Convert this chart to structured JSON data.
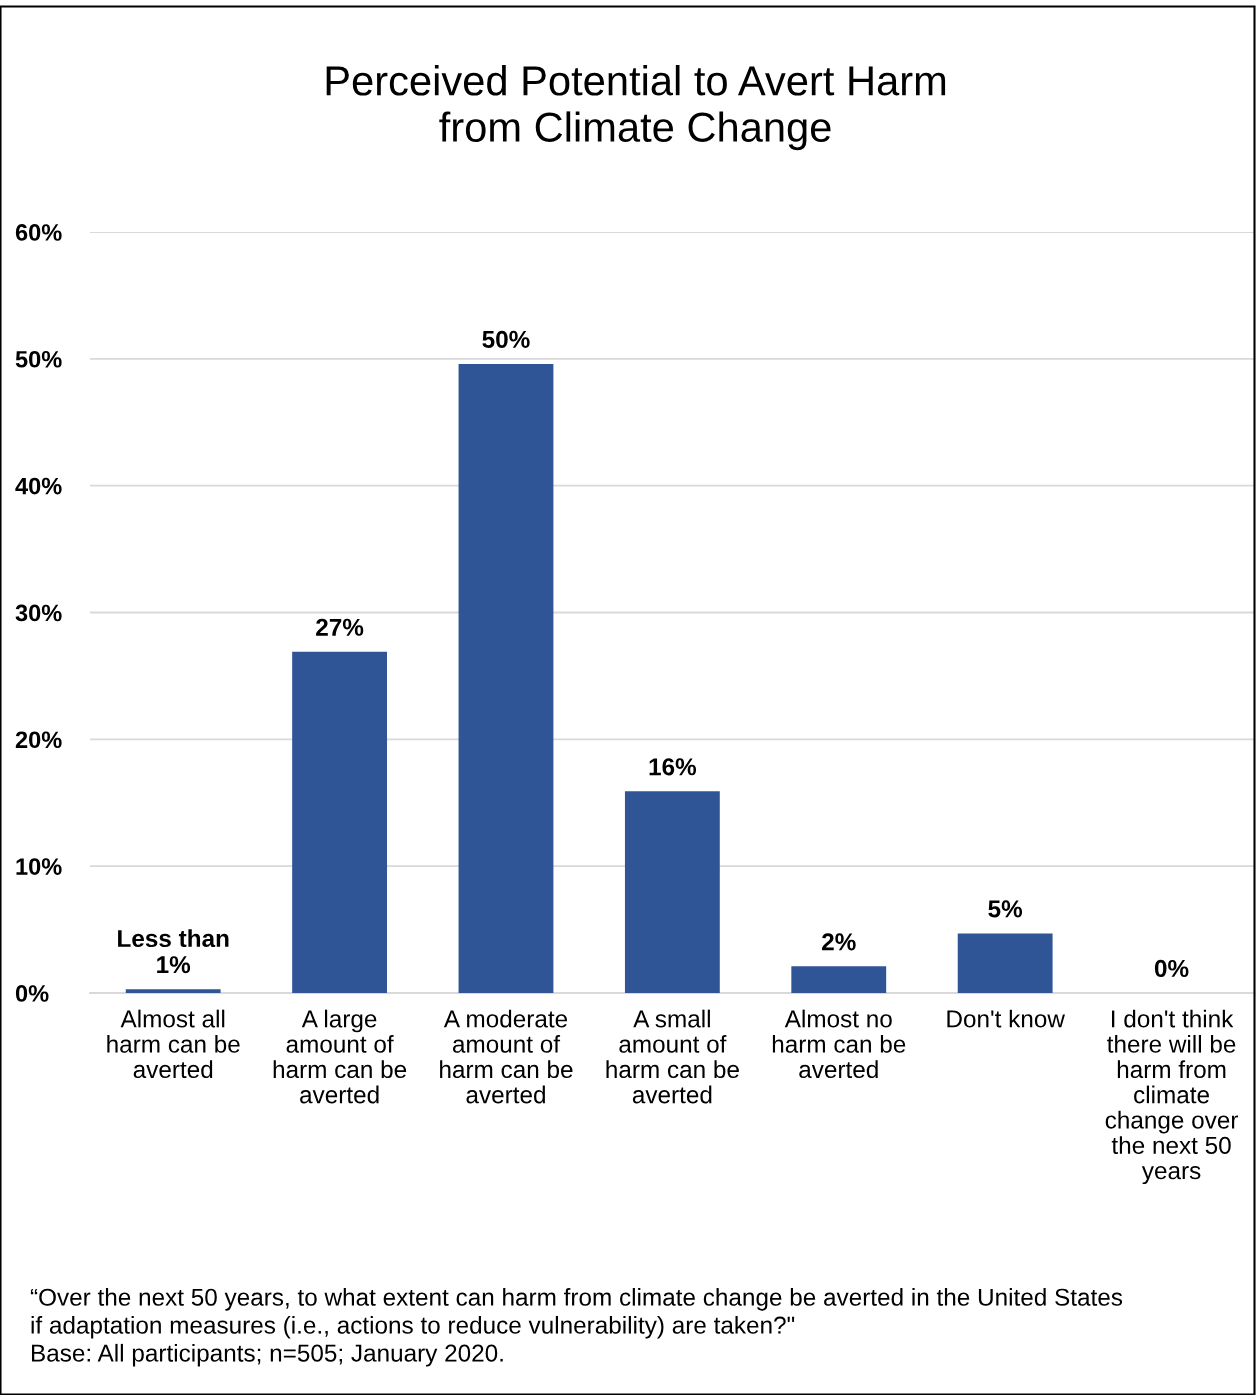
{
  "chart_data": {
    "type": "bar",
    "title": "Perceived Potential to Avert Harm\nfrom Climate Change",
    "categories": [
      "Almost all\nharm can be\naverted",
      "A large\namount of\nharm can be\naverted",
      "A moderate\namount of\nharm can be\naverted",
      "A small\namount of\nharm can be\naverted",
      "Almost no\nharm can be\naverted",
      "Don't know",
      "I don't think\nthere will be\nharm from\nclimate\nchange over\nthe next 50\nyears"
    ],
    "values": [
      0.3,
      26.9,
      49.6,
      15.9,
      2.1,
      4.7,
      0
    ],
    "value_labels": [
      "Less than\n1%",
      "27%",
      "50%",
      "16%",
      "2%",
      "5%",
      "0%"
    ],
    "color": "#2f5597",
    "ylim": [
      0,
      60
    ],
    "yticks": [
      {
        "value": 0,
        "label": "0%"
      },
      {
        "value": 10,
        "label": "10%"
      },
      {
        "value": 20,
        "label": "20%"
      },
      {
        "value": 30,
        "label": "30%"
      },
      {
        "value": 40,
        "label": "40%"
      },
      {
        "value": 50,
        "label": "50%"
      },
      {
        "value": 60,
        "label": "60%"
      }
    ],
    "grid": "y",
    "legend": false,
    "annotations": [
      "“Over the next 50 years, to what extent can harm from climate change be averted in the United States\nif adaptation measures (i.e., actions to reduce vulnerability) are taken?\"\nBase: All participants; n=505; January 2020."
    ]
  }
}
